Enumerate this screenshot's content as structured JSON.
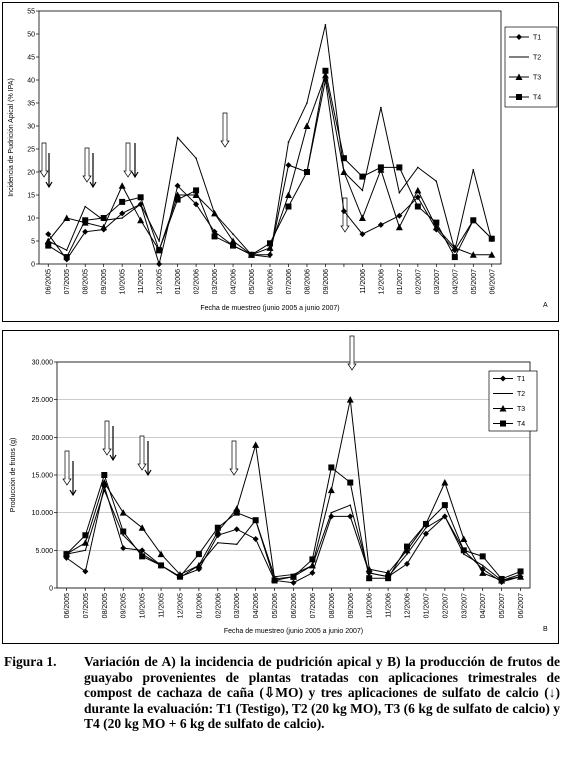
{
  "chart_data": [
    {
      "type": "line",
      "panel_label": "A",
      "y_label": "Incidencia de Pudrición Apical (% IPA)",
      "x_label": "Fecha de muestreo (junio 2005 a junio 2007)",
      "categories": [
        "06/2005",
        "07/2005",
        "08/2005",
        "09/2005",
        "10/2005",
        "11/2005",
        "12/2005",
        "01/2006",
        "02/2006",
        "03/2006",
        "04/2006",
        "05/2006",
        "06/2006",
        "07/2006",
        "08/2006",
        "09/2006",
        null,
        "11/2006",
        "12/2006",
        "01/2007",
        "02/2007",
        "03/2007",
        "04/2007",
        "05/2007",
        "06/2007"
      ],
      "ylim": [
        0,
        55
      ],
      "yticks": [
        0,
        5,
        10,
        15,
        20,
        25,
        30,
        35,
        40,
        45,
        50,
        55
      ],
      "grid": false,
      "series": [
        {
          "name": "T1",
          "color": "#000000",
          "marker": "diamond",
          "values": [
            6.5,
            1,
            7,
            7.5,
            11,
            13,
            0,
            17,
            13,
            7,
            4,
            2,
            2,
            21.5,
            20,
            40,
            11.5,
            6.5,
            8.5,
            10.5,
            14.5,
            7.5,
            3,
            9.5,
            5.5
          ]
        },
        {
          "name": "T2",
          "color": "#000000",
          "marker": "none",
          "values": [
            5,
            3,
            12.5,
            9.5,
            10,
            13,
            5,
            27.5,
            23,
            11,
            6.5,
            2,
            1.5,
            26.5,
            35,
            52,
            20,
            16,
            34,
            15.5,
            21,
            18,
            3,
            20.5,
            5
          ]
        },
        {
          "name": "T3",
          "color": "#000000",
          "marker": "triangle",
          "values": [
            5,
            10,
            9,
            8,
            17,
            9.5,
            3,
            15,
            15,
            11,
            5,
            2,
            3.5,
            15,
            30,
            41,
            20,
            10,
            20.5,
            8,
            16,
            8,
            3.5,
            2,
            2
          ]
        },
        {
          "name": "T4",
          "color": "#000000",
          "marker": "square",
          "values": [
            4,
            1.5,
            9.5,
            10,
            13.5,
            14.5,
            3,
            14,
            16,
            6,
            4,
            2,
            4.5,
            12.5,
            20,
            42,
            23,
            19,
            21,
            21,
            12.5,
            9,
            1.5,
            9.5,
            5.5
          ]
        }
      ]
    },
    {
      "type": "line",
      "panel_label": "B",
      "y_label": "Producción de frutos (g)",
      "x_label": "Fecha de muestreo (junio 2005 a junio 2007)",
      "categories": [
        "06/2005",
        "07/2005",
        "08/2005",
        "09/2005",
        "10/2005",
        "11/2005",
        "12/2005",
        "01/2006",
        "02/2006",
        "03/2006",
        "04/2006",
        "05/2006",
        "06/2006",
        "07/2006",
        "08/2006",
        "09/2006",
        "10/2006",
        "11/2006",
        "12/2006",
        "01/2007",
        "02/2007",
        "03/2007",
        "04/2007",
        "05/2007",
        "06/2007"
      ],
      "ylim": [
        0,
        30000
      ],
      "yticks": [
        0,
        {
          "value": 5000,
          "label": "5.000"
        },
        {
          "value": 10000,
          "label": "10.000"
        },
        {
          "value": 15000,
          "label": "15.000"
        },
        {
          "value": 20000,
          "label": "20.000"
        },
        {
          "value": 25000,
          "label": "25.000"
        },
        {
          "value": 30000,
          "label": "30.000"
        }
      ],
      "grid": true,
      "series": [
        {
          "name": "T1",
          "color": "#000000",
          "marker": "diamond",
          "values": [
            4000,
            2200,
            13500,
            5300,
            5000,
            3000,
            1500,
            2500,
            7000,
            7800,
            6500,
            1000,
            700,
            2000,
            9500,
            9500,
            2000,
            1500,
            3200,
            7200,
            9500,
            5000,
            2500,
            800,
            1500
          ]
        },
        {
          "name": "T2",
          "color": "#000000",
          "marker": "none",
          "values": [
            4500,
            5000,
            13000,
            7000,
            4500,
            3000,
            1400,
            3000,
            6000,
            5800,
            9000,
            1500,
            1800,
            3000,
            10000,
            11000,
            2000,
            1500,
            4500,
            8000,
            9500,
            4500,
            3000,
            1000,
            1800
          ]
        },
        {
          "name": "T3",
          "color": "#000000",
          "marker": "triangle",
          "values": [
            4500,
            6000,
            14000,
            10000,
            8000,
            4500,
            1800,
            3000,
            7500,
            10500,
            19000,
            1200,
            1500,
            3000,
            13000,
            25000,
            2500,
            2000,
            5000,
            8500,
            14000,
            6500,
            2000,
            1000,
            1500
          ]
        },
        {
          "name": "T4",
          "color": "#000000",
          "marker": "square",
          "values": [
            4500,
            7000,
            15000,
            7500,
            4200,
            3000,
            1500,
            4500,
            8000,
            10000,
            9000,
            1000,
            1500,
            3800,
            16000,
            14000,
            1300,
            1300,
            5500,
            8500,
            11000,
            5000,
            4200,
            1200,
            2200
          ]
        }
      ]
    }
  ],
  "caption": {
    "label": "Figura 1.",
    "text": "Variación de A) la incidencia de pudrición apical y B) la producción de frutos de guayabo provenientes de plantas tratadas con aplicaciones trimestrales de compost de cachaza de caña (⇩MO) y tres aplicaciones de sulfato de calcio (↓) durante la evaluación: T1 (Testigo), T2 (20 kg MO), T3 (6 kg de sulfato de calcio) y T4 (20 kg MO + 6 kg de sulfato de calcio)."
  }
}
